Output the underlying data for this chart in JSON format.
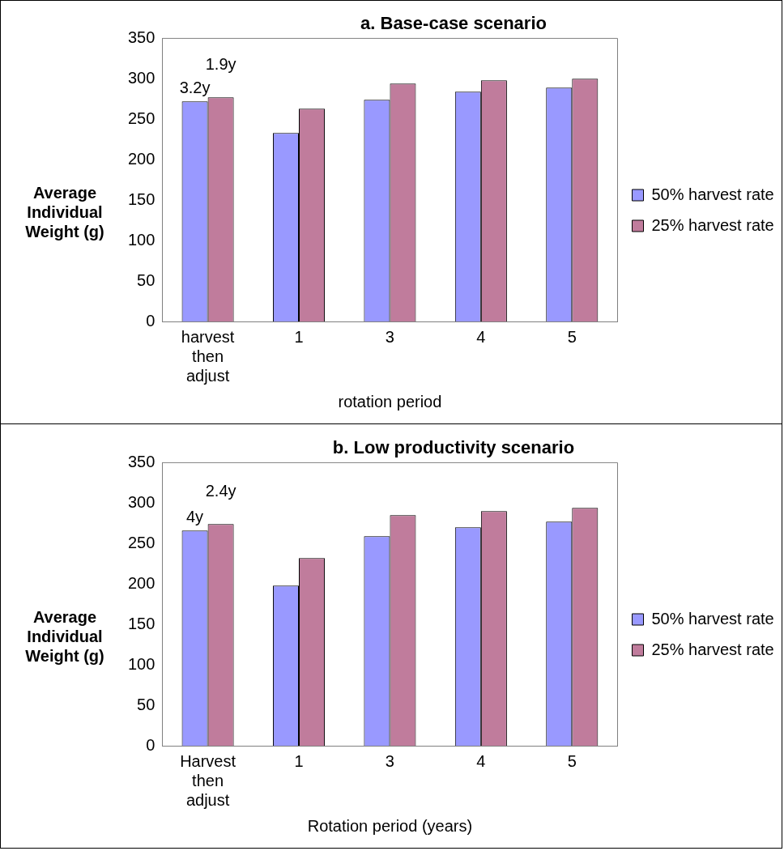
{
  "chart_data": [
    {
      "type": "bar",
      "title": "a. Base-case scenario",
      "xlabel": "rotation period",
      "ylabel": "Average Individual Weight (g)",
      "categories": [
        "harvest then adjust",
        "1",
        "3",
        "4",
        "5"
      ],
      "series": [
        {
          "name": "50% harvest rate",
          "color": "#9999ff",
          "values": [
            272,
            233,
            274,
            284,
            289
          ]
        },
        {
          "name": "25% harvest rate",
          "color": "#c07c9c",
          "values": [
            277,
            263,
            294,
            298,
            300
          ]
        }
      ],
      "annotations": [
        "3.2y",
        "1.9y"
      ],
      "ylim": [
        0,
        350
      ],
      "yticks": [
        0,
        50,
        100,
        150,
        200,
        250,
        300,
        350
      ],
      "grid": false,
      "legend": "right"
    },
    {
      "type": "bar",
      "title": "b. Low productivity scenario",
      "xlabel": "Rotation period (years)",
      "ylabel": "Average Individual Weight (g)",
      "categories": [
        "Harvest then adjust",
        "1",
        "3",
        "4",
        "5"
      ],
      "series": [
        {
          "name": "50% harvest rate",
          "color": "#9999ff",
          "values": [
            266,
            198,
            259,
            270,
            277
          ]
        },
        {
          "name": "25% harvest rate",
          "color": "#c07c9c",
          "values": [
            274,
            232,
            285,
            290,
            294
          ]
        }
      ],
      "annotations": [
        "4y",
        "2.4y"
      ],
      "ylim": [
        0,
        350
      ],
      "yticks": [
        0,
        50,
        100,
        150,
        200,
        250,
        300,
        350
      ],
      "grid": false,
      "legend": "right"
    }
  ]
}
